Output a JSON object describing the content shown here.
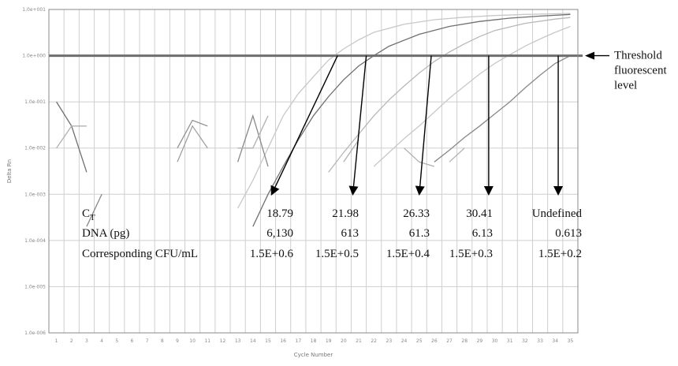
{
  "chart_data": {
    "type": "line",
    "xlabel": "Cycle Number",
    "ylabel": "Delta Rn",
    "y_scale": "log",
    "x_tick_labels": [
      "1",
      "2",
      "3",
      "4",
      "5",
      "6",
      "7",
      "8",
      "9",
      "10",
      "11",
      "12",
      "13",
      "14",
      "15",
      "16",
      "17",
      "18",
      "19",
      "20",
      "21",
      "22",
      "23",
      "24",
      "25",
      "26",
      "27",
      "28",
      "29",
      "30",
      "31",
      "32",
      "33",
      "34",
      "35"
    ],
    "y_tick_labels": [
      "1.0e+001",
      "1.0e+000",
      "1.0e-001",
      "1.0e-002",
      "1.0e-003",
      "1.0e-004",
      "1.0e-005",
      "1.0e-006"
    ],
    "grid": true,
    "threshold_level": 1.0,
    "threshold_annotation": [
      "Threshold",
      "fluorescent",
      "level"
    ],
    "table": {
      "row_labels": [
        "CT",
        "DNA (pg)",
        "Corresponding CFU/mL"
      ],
      "ct_subscript_label": {
        "base": "C",
        "sub": "T"
      },
      "columns": [
        {
          "ct": "18.79",
          "dna": "6,130",
          "cfu": "1.5E+0.6"
        },
        {
          "ct": "21.98",
          "dna": "613",
          "cfu": "1.5E+0.5"
        },
        {
          "ct": "26.33",
          "dna": "61.3",
          "cfu": "1.5E+0.4"
        },
        {
          "ct": "30.41",
          "dna": "6.13",
          "cfu": "1.5E+0.3"
        },
        {
          "ct": "Undefined",
          "dna": "0.613",
          "cfu": "1.5E+0.2"
        }
      ]
    },
    "series": [
      {
        "color": "#c8c8c8",
        "x": [
          13,
          14,
          15,
          16,
          17,
          18,
          19,
          20,
          21,
          22,
          24,
          26,
          28,
          30,
          32,
          35
        ],
        "y": [
          0.0005,
          0.002,
          0.01,
          0.05,
          0.15,
          0.35,
          0.8,
          1.4,
          2.2,
          3.2,
          4.8,
          6.0,
          6.8,
          7.4,
          7.8,
          8.2
        ]
      },
      {
        "color": "#707070",
        "x": [
          14,
          15,
          16,
          17,
          18,
          19,
          20,
          21,
          22,
          23,
          25,
          27,
          29,
          31,
          33,
          35
        ],
        "y": [
          0.0002,
          0.001,
          0.004,
          0.015,
          0.05,
          0.13,
          0.3,
          0.6,
          1.0,
          1.6,
          2.9,
          4.3,
          5.5,
          6.5,
          7.2,
          7.8
        ]
      },
      {
        "color": "#b8b8b8",
        "x": [
          19,
          20,
          21,
          22,
          23,
          24,
          25,
          26,
          27,
          28,
          29,
          30,
          32,
          34,
          35
        ],
        "y": [
          0.003,
          0.008,
          0.02,
          0.05,
          0.11,
          0.22,
          0.42,
          0.75,
          1.2,
          1.8,
          2.6,
          3.5,
          5.0,
          6.2,
          6.7
        ]
      },
      {
        "color": "#c8c8c8",
        "x": [
          22,
          23,
          24,
          25,
          26,
          27,
          28,
          29,
          30,
          31,
          32,
          33,
          34,
          35
        ],
        "y": [
          0.004,
          0.008,
          0.016,
          0.03,
          0.06,
          0.12,
          0.22,
          0.4,
          0.68,
          1.05,
          1.6,
          2.3,
          3.2,
          4.3
        ]
      },
      {
        "color": "#888888",
        "x": [
          26,
          27,
          28,
          29,
          30,
          31,
          32,
          33,
          34,
          35
        ],
        "y": [
          0.005,
          0.009,
          0.017,
          0.03,
          0.055,
          0.1,
          0.2,
          0.38,
          0.68,
          1.0
        ]
      },
      {
        "color": "#707070",
        "x": [
          1,
          2,
          3
        ],
        "y": [
          0.1,
          0.03,
          0.003
        ]
      },
      {
        "color": "#b0b0b0",
        "x": [
          1,
          2,
          3
        ],
        "y": [
          0.01,
          0.03,
          0.03
        ]
      },
      {
        "color": "#888888",
        "x": [
          3,
          4
        ],
        "y": [
          0.0002,
          0.001
        ]
      },
      {
        "color": "#909090",
        "x": [
          9,
          10,
          11
        ],
        "y": [
          0.01,
          0.04,
          0.03
        ]
      },
      {
        "color": "#a0a0a0",
        "x": [
          9,
          10,
          11
        ],
        "y": [
          0.005,
          0.03,
          0.01
        ]
      },
      {
        "color": "#888888",
        "x": [
          13,
          14,
          15
        ],
        "y": [
          0.005,
          0.05,
          0.004
        ]
      },
      {
        "color": "#b0b0b0",
        "x": [
          13,
          14,
          15
        ],
        "y": [
          0.01,
          0.01,
          0.05
        ]
      },
      {
        "color": "#b0b0b0",
        "x": [
          20,
          21
        ],
        "y": [
          0.005,
          0.015
        ]
      },
      {
        "color": "#b0b0b0",
        "x": [
          24,
          25,
          26
        ],
        "y": [
          0.01,
          0.005,
          0.004
        ]
      },
      {
        "color": "#b0b0b0",
        "x": [
          27,
          28
        ],
        "y": [
          0.005,
          0.01
        ]
      }
    ],
    "arrows": [
      {
        "from_x": 19.6,
        "to_x": 15.2,
        "to_y": 0.0001
      },
      {
        "from_x": 21.5,
        "to_x": 20.6,
        "to_y": 0.0001
      },
      {
        "from_x": 25.8,
        "to_x": 25.0,
        "to_y": 0.0001
      },
      {
        "from_x": 29.6,
        "to_x": 29.6,
        "to_y": 0.0001
      },
      {
        "from_x": 34.2,
        "to_x": 34.2,
        "to_y": 0.0001
      }
    ],
    "colors": {
      "threshold": "#6e6e6e",
      "grid": "#cfcfcf",
      "frame": "#888888",
      "arrow": "#000000"
    }
  }
}
